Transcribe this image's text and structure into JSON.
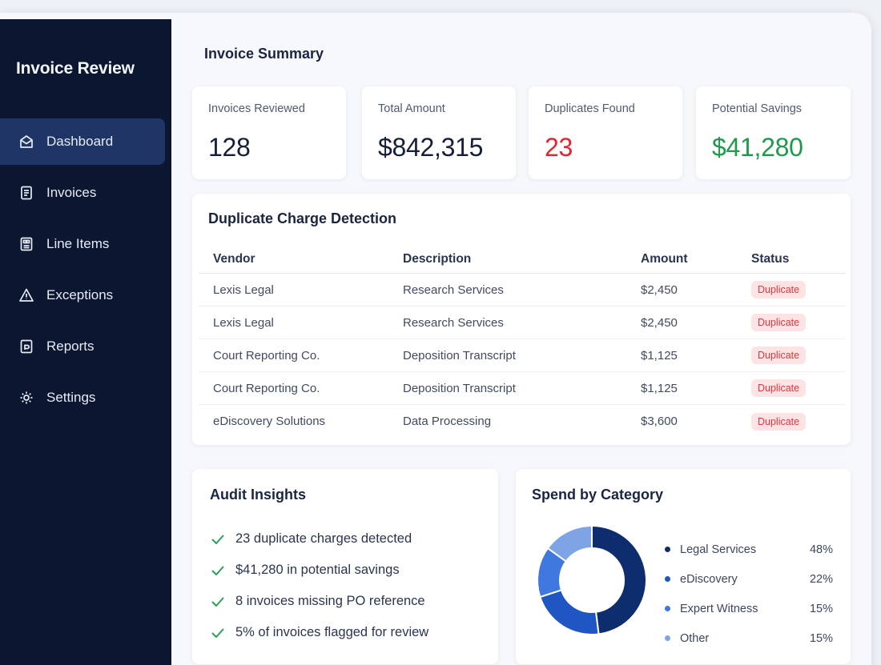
{
  "app": {
    "title": "Invoice Review"
  },
  "sidebar": {
    "items": [
      {
        "label": "Dashboard",
        "icon": "envelope-open-icon",
        "active": true
      },
      {
        "label": "Invoices",
        "icon": "document-icon"
      },
      {
        "label": "Line Items",
        "icon": "receipt-icon"
      },
      {
        "label": "Exceptions",
        "icon": "warning-icon"
      },
      {
        "label": "Reports",
        "icon": "report-icon"
      },
      {
        "label": "Settings",
        "icon": "gear-icon"
      }
    ]
  },
  "summary": {
    "title": "Invoice Summary",
    "stats": [
      {
        "label": "Invoices Reviewed",
        "value": "128"
      },
      {
        "label": "Total Amount",
        "value": "$842,315"
      },
      {
        "label": "Duplicates Found",
        "value": "23"
      },
      {
        "label": "Potential Savings",
        "value": "$41,280"
      }
    ]
  },
  "duplicates": {
    "title": "Duplicate Charge Detection",
    "columns": [
      "Vendor",
      "Description",
      "Amount",
      "Status"
    ],
    "rows": [
      {
        "vendor": "Lexis Legal",
        "description": "Research Services",
        "amount": "$2,450",
        "status": "Duplicate"
      },
      {
        "vendor": "Lexis Legal",
        "description": "Research Services",
        "amount": "$2,450",
        "status": "Duplicate"
      },
      {
        "vendor": "Court Reporting Co.",
        "description": "Deposition Transcript",
        "amount": "$1,125",
        "status": "Duplicate"
      },
      {
        "vendor": "Court Reporting Co.",
        "description": "Deposition Transcript",
        "amount": "$1,125",
        "status": "Duplicate"
      },
      {
        "vendor": "eDiscovery Solutions",
        "description": "Data Processing",
        "amount": "$3,600",
        "status": "Duplicate"
      }
    ]
  },
  "insights": {
    "title": "Audit Insights",
    "items": [
      "23 duplicate charges detected",
      "$41,280 in potential savings",
      "8 invoices missing PO reference",
      "5% of invoices flagged for review"
    ]
  },
  "spend": {
    "title": "Spend by Category",
    "categories": [
      {
        "label": "Legal Services",
        "pct_label": "48%",
        "value": 48,
        "color": "#0d2d6e"
      },
      {
        "label": "eDiscovery",
        "pct_label": "22%",
        "value": 22,
        "color": "#1f56c4"
      },
      {
        "label": "Expert Witness",
        "pct_label": "15%",
        "value": 15,
        "color": "#3f78de"
      },
      {
        "label": "Other",
        "pct_label": "15%",
        "value": 15,
        "color": "#7fa4e6"
      }
    ]
  },
  "colors": {
    "sidebar_bg": "#0b1630",
    "sidebar_active": "#1f3565",
    "danger": "#e0262e",
    "success": "#1e9a4c",
    "check": "#2aa05a"
  }
}
